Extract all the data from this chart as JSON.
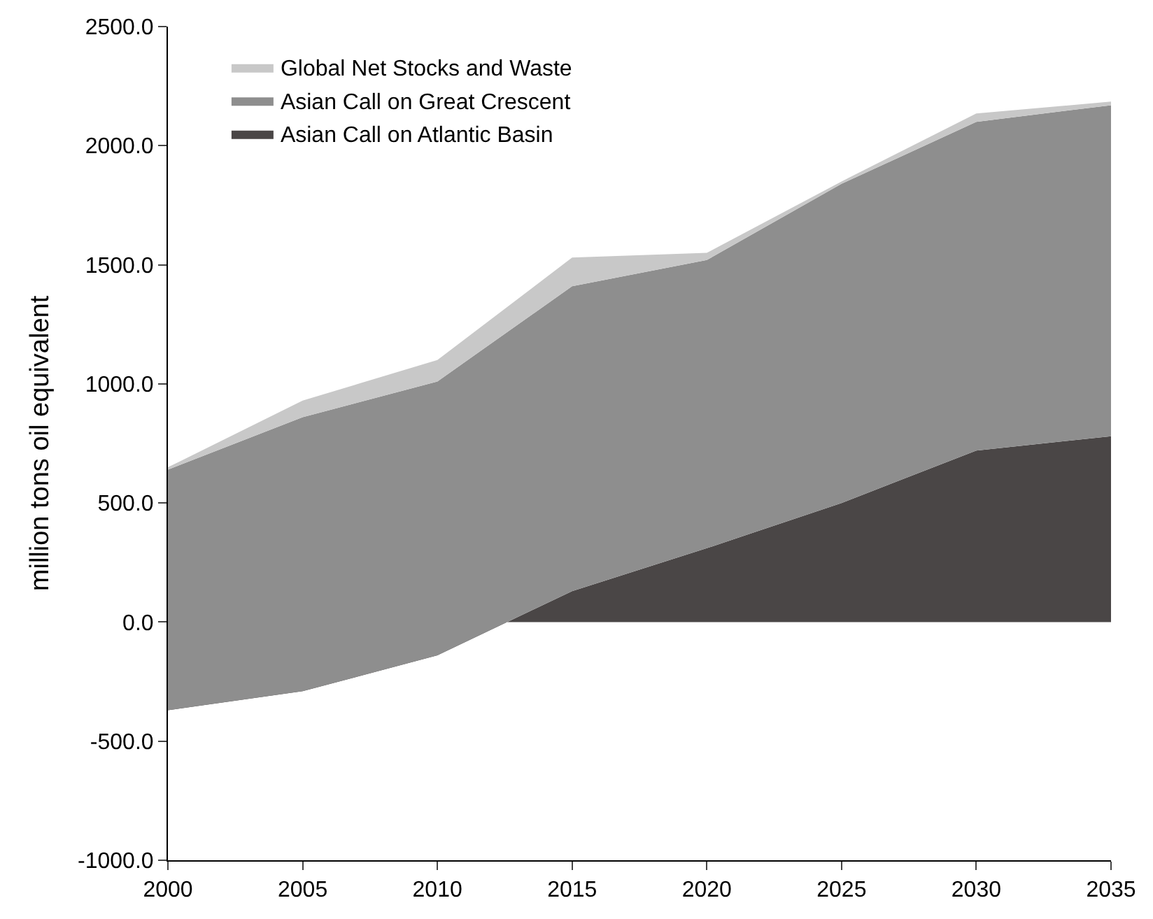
{
  "chart_data": {
    "type": "area",
    "stacked": true,
    "ylabel": "million tons oil equivalent",
    "x": [
      2000,
      2005,
      2010,
      2015,
      2020,
      2025,
      2030,
      2035
    ],
    "series": [
      {
        "name": "Asian Call on Atlantic Basin",
        "color": "#4a4646",
        "values": [
          -370,
          -290,
          -140,
          130,
          310,
          500,
          720,
          780
        ]
      },
      {
        "name": "Asian Call on Great Crescent",
        "color": "#8e8e8e",
        "values": [
          1010,
          1150,
          1150,
          1280,
          1210,
          1340,
          1380,
          1390
        ]
      },
      {
        "name": "Global Net Stocks and Waste",
        "color": "#c8c8c8",
        "values": [
          10,
          70,
          90,
          120,
          30,
          10,
          35,
          15
        ]
      }
    ],
    "xlim": [
      2000,
      2035
    ],
    "xticks": [
      2000,
      2005,
      2010,
      2015,
      2020,
      2025,
      2030,
      2035
    ],
    "ylim": [
      -1000,
      2500
    ],
    "yticks": [
      {
        "value": -1000,
        "label": "-1000.0"
      },
      {
        "value": -500,
        "label": "-500.0"
      },
      {
        "value": 0,
        "label": "0.0"
      },
      {
        "value": 500,
        "label": "500.0"
      },
      {
        "value": 1000,
        "label": "1000.0"
      },
      {
        "value": 1500,
        "label": "1500.0"
      },
      {
        "value": 2000,
        "label": "2000.0"
      },
      {
        "value": 2500,
        "label": "2500.0"
      }
    ],
    "legend": "top left"
  }
}
